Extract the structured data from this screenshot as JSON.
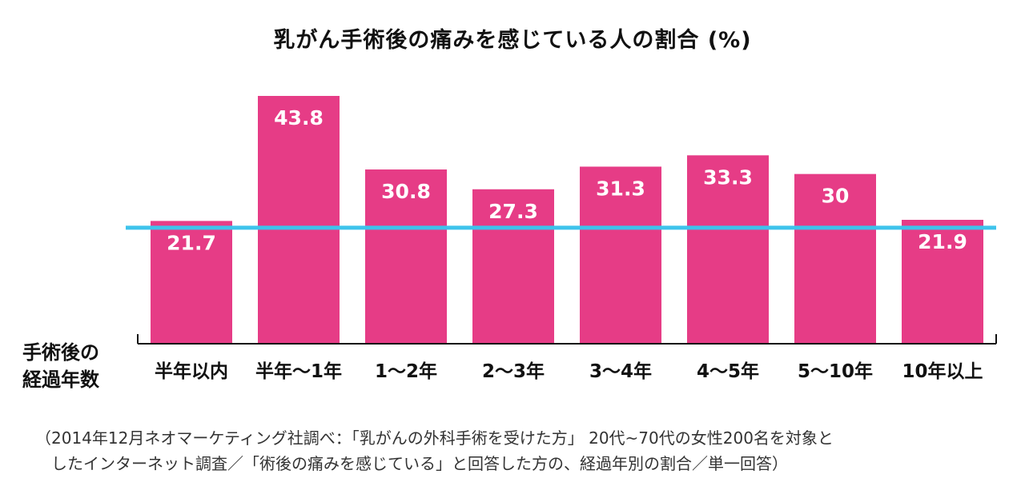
{
  "chart_data": {
    "type": "bar",
    "title": "乳がん手術後の痛みを感じている人の割合 (%)",
    "xlabel_lines": [
      "手術後の",
      "経過年数"
    ],
    "categories": [
      "半年以内",
      "半年〜1年",
      "1〜2年",
      "2〜3年",
      "3〜4年",
      "4〜5年",
      "5〜10年",
      "10年以上"
    ],
    "values": [
      21.7,
      43.8,
      30.8,
      27.3,
      31.3,
      33.3,
      30,
      21.9
    ],
    "value_labels": [
      "21.7",
      "43.8",
      "30.8",
      "27.3",
      "31.3",
      "33.3",
      "30",
      "21.9"
    ],
    "reference_line": 20.5,
    "ylim": [
      0,
      49
    ],
    "grid": false,
    "colors": {
      "bar": "#e63c86",
      "reference_line": "#3ec3ec",
      "bar_label": "#ffffff"
    }
  },
  "footnote": {
    "line1": "（2014年12月ネオマーケティング社調べ：「乳がんの外科手術を受けた方」 20代~70代の女性200名を対象と",
    "line2": "したインターネット調査／「術後の痛みを感じている」と回答した方の、経過年別の割合／単一回答）"
  }
}
